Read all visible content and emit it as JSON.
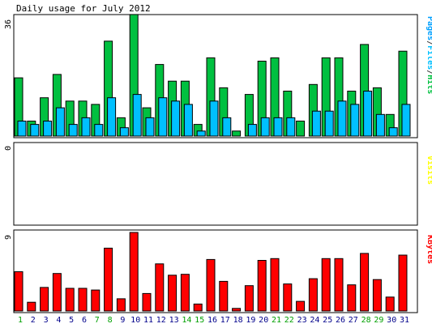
{
  "chart_data": [
    {
      "type": "bar",
      "title": "Daily usage for July 2012",
      "ylabel_parts": [
        {
          "text": "Pages",
          "color": "#00a0ff"
        },
        {
          "text": "/",
          "color": "#404040"
        },
        {
          "text": "Files",
          "color": "#00c0ff"
        },
        {
          "text": "/",
          "color": "#404040"
        },
        {
          "text": "Hits",
          "color": "#00c040"
        }
      ],
      "ymax_label": "36",
      "ylim": [
        0,
        36
      ],
      "series": [
        {
          "name": "Hits",
          "color": "#00c040",
          "values": [
            17.5,
            4.5,
            11.5,
            18.5,
            10.5,
            10.5,
            9.5,
            28.5,
            5.5,
            36.5,
            8.5,
            21.5,
            16.5,
            16.5,
            3.5,
            23.5,
            14.5,
            1.5,
            12.5,
            22.5,
            23.5,
            13.5,
            4.5,
            15.5,
            23.5,
            23.5,
            13.5,
            27.5,
            14.5,
            6.5,
            25.5
          ]
        },
        {
          "name": "Files",
          "color": "#00c0ff",
          "values": [
            4.5,
            3.5,
            4.5,
            8.5,
            3.5,
            5.5,
            3.5,
            11.5,
            2.5,
            12.5,
            5.5,
            11.5,
            10.5,
            9.5,
            1.5,
            10.5,
            5.5,
            0,
            3.5,
            5.5,
            5.5,
            5.5,
            0,
            7.5,
            7.5,
            10.5,
            9.5,
            13.5,
            6.5,
            2.5,
            9.5
          ]
        }
      ]
    },
    {
      "type": "bar",
      "ylabel": "Visits",
      "ylabel_color": "#ffff00",
      "ymax_label": "0",
      "ylim": [
        0,
        1
      ],
      "series": [
        {
          "name": "Visits",
          "color": "#ffff00",
          "values": [
            0,
            0,
            0,
            0,
            0,
            0,
            0,
            0,
            0,
            0,
            0,
            0,
            0,
            0,
            0,
            0,
            0,
            0,
            0,
            0,
            0,
            0,
            0,
            0,
            0,
            0,
            0,
            0,
            0,
            0,
            0
          ]
        }
      ]
    },
    {
      "type": "bar",
      "ylabel": "KBytes",
      "ylabel_color": "#ff0000",
      "ymax_label": "9",
      "ylim": [
        0,
        9
      ],
      "categories": [
        "1",
        "2",
        "3",
        "4",
        "5",
        "6",
        "7",
        "8",
        "9",
        "10",
        "11",
        "12",
        "13",
        "14",
        "15",
        "16",
        "17",
        "18",
        "19",
        "20",
        "21",
        "22",
        "23",
        "24",
        "25",
        "26",
        "27",
        "28",
        "29",
        "30",
        "31"
      ],
      "weekend_days": [
        "1",
        "7",
        "8",
        "14",
        "15",
        "21",
        "22",
        "28",
        "29"
      ],
      "weekday_color": "#00008b",
      "weekend_color": "#00a000",
      "series": [
        {
          "name": "KBytes",
          "color": "#ff0000",
          "values": [
            4.5,
            1,
            2.7,
            4.3,
            2.6,
            2.6,
            2.4,
            7.2,
            1.4,
            9.0,
            2.0,
            5.4,
            4.1,
            4.2,
            0.8,
            5.9,
            3.4,
            0.3,
            2.9,
            5.8,
            6.0,
            3.1,
            1.1,
            3.7,
            6.0,
            6.0,
            3.0,
            6.6,
            3.6,
            1.6,
            6.4
          ]
        }
      ]
    }
  ]
}
